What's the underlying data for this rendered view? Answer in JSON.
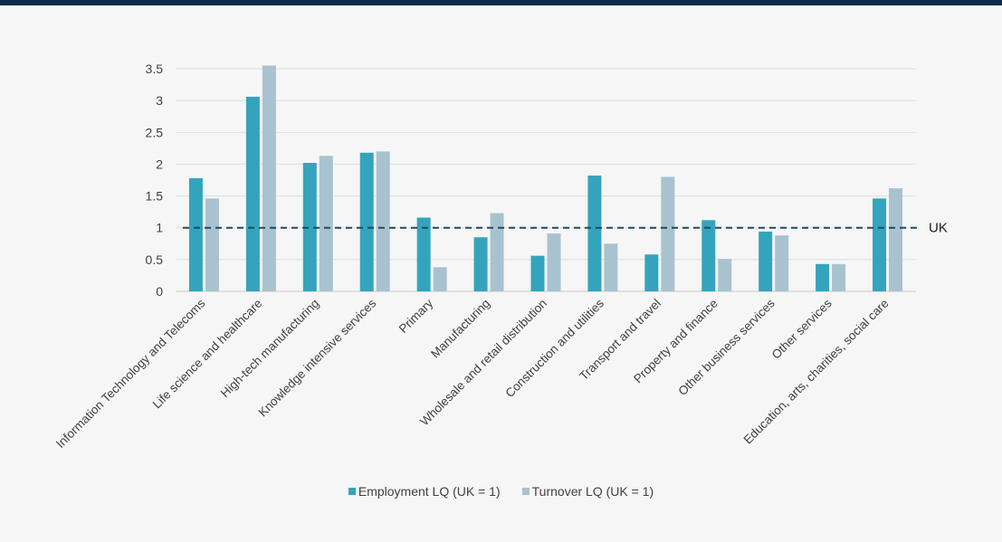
{
  "chart_data": {
    "type": "bar",
    "title": "",
    "xlabel": "",
    "ylabel": "",
    "ylim": [
      0,
      3.5
    ],
    "yticks": [
      "0",
      "0.5",
      "1",
      "1.5",
      "2",
      "2.5",
      "3",
      "3.5"
    ],
    "grid": "horizontal",
    "legend_position": "bottom",
    "categories": [
      "Information Technology and Telecoms",
      "Life science and healthcare",
      "High-tech manufacturing",
      "Knowledge intensive services",
      "Primary",
      "Manufacturing",
      "Wholesale and retail distribution",
      "Construction and utilities",
      "Transport and travel",
      "Property and finance",
      "Other business services",
      "Other services",
      "Education, arts, charities, social care"
    ],
    "series": [
      {
        "name": "Employment LQ (UK = 1)",
        "color": "#34a4bd",
        "values": [
          1.78,
          3.06,
          2.02,
          2.18,
          1.16,
          0.85,
          0.56,
          1.82,
          0.58,
          1.12,
          0.94,
          0.43,
          1.46
        ]
      },
      {
        "name": "Turnover LQ (UK = 1)",
        "color": "#a9c2cf",
        "values": [
          1.46,
          3.55,
          2.13,
          2.2,
          0.38,
          1.23,
          0.91,
          0.75,
          1.8,
          0.51,
          0.88,
          0.43,
          1.62
        ]
      }
    ],
    "reference_line": {
      "value": 1,
      "label": "UK",
      "color": "#1d4a63",
      "style": "dashed"
    }
  }
}
